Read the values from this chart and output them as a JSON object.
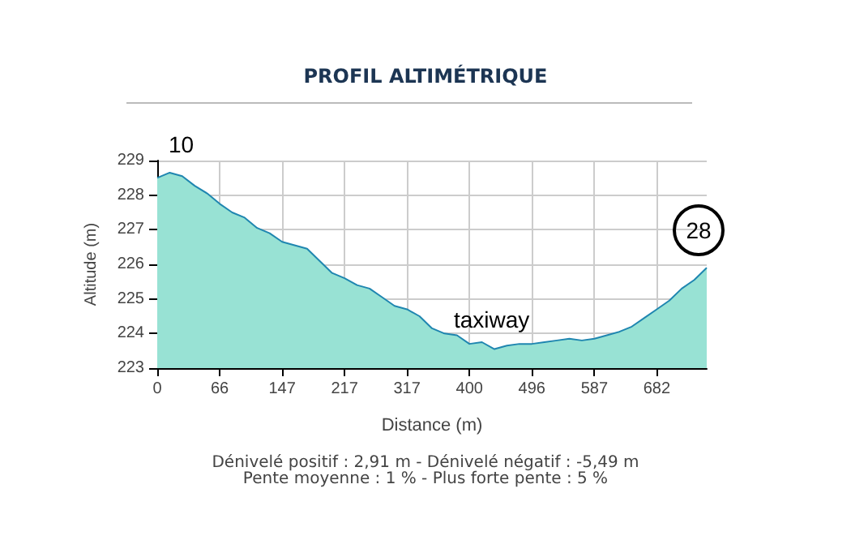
{
  "chart_data": {
    "type": "area",
    "title": "PROFIL ALTIMÉTRIQUE",
    "xlabel": "Distance (m)",
    "ylabel": "Altitude (m)",
    "categories": [
      "0",
      null,
      null,
      null,
      null,
      "66",
      null,
      null,
      null,
      null,
      "147",
      null,
      null,
      null,
      null,
      "217",
      null,
      null,
      null,
      null,
      "317",
      null,
      null,
      null,
      null,
      "400",
      null,
      null,
      null,
      null,
      "496",
      null,
      null,
      null,
      null,
      "587",
      null,
      null,
      null,
      null,
      "682",
      null,
      null,
      null,
      null
    ],
    "series": [
      {
        "color": "#1f86b0",
        "values": [
          228.5,
          228.65,
          228.55,
          228.27,
          228.05,
          227.75,
          227.5,
          227.35,
          227.05,
          226.9,
          226.65,
          226.55,
          226.45,
          226.1,
          225.75,
          225.6,
          225.4,
          225.3,
          225.05,
          224.8,
          224.7,
          224.5,
          224.15,
          224.0,
          223.95,
          223.7,
          223.75,
          223.55,
          223.65,
          223.7,
          223.7,
          223.75,
          223.8,
          223.85,
          223.8,
          223.85,
          223.95,
          224.05,
          224.2,
          224.45,
          224.7,
          224.95,
          225.3,
          225.55,
          225.9
        ]
      }
    ],
    "ylim": [
      223,
      229
    ],
    "yticks": [
      223,
      224,
      225,
      226,
      227,
      228,
      229
    ],
    "grid": true,
    "marker": "none",
    "annotations": [
      "10",
      "taxiway",
      "28",
      "Dénivelé positif : 2,91 m - Dénivelé négatif : -5,49 m",
      "Pente moyenne : 1 % - Plus forte pente : 5 %"
    ]
  }
}
